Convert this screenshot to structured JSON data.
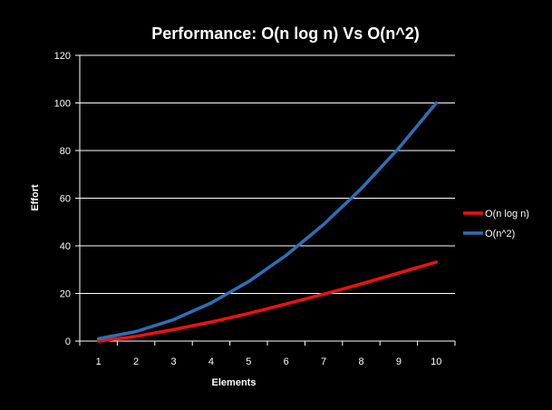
{
  "chart_data": {
    "type": "line",
    "title": "Performance: O(n log n) Vs O(n^2)",
    "xlabel": "Elements",
    "ylabel": "Effort",
    "categories": [
      "1",
      "2",
      "3",
      "4",
      "5",
      "6",
      "7",
      "8",
      "9",
      "10"
    ],
    "ylim": [
      0,
      120
    ],
    "yticks": [
      "0",
      "20",
      "40",
      "60",
      "80",
      "100",
      "120"
    ],
    "grid": true,
    "legend_position": "right",
    "series": [
      {
        "name": "O(n log n)",
        "color": "#ee1111",
        "values": [
          0,
          2,
          4.8,
          8,
          11.6,
          15.6,
          19.7,
          24,
          28.6,
          33.2
        ]
      },
      {
        "name": "O(n^2)",
        "color": "#2e6fb7",
        "values": [
          1,
          4,
          9,
          16,
          25,
          36,
          49,
          64,
          81,
          100
        ]
      }
    ]
  }
}
